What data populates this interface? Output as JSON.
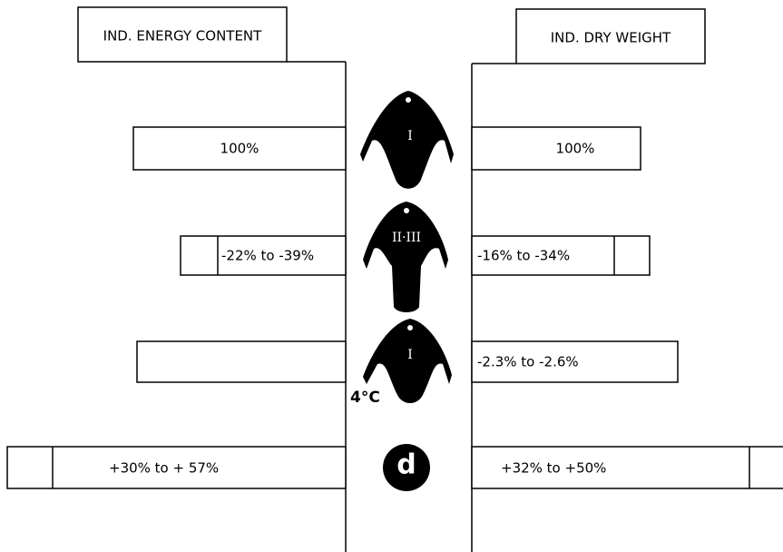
{
  "header": {
    "left": "IND. ENERGY CONTENT",
    "right": "IND. DRY WEIGHT"
  },
  "rows": [
    {
      "stage": "I",
      "left": "100%",
      "right": "100%"
    },
    {
      "stage": "II·III",
      "left": "-22% to -39%",
      "right": "-16% to -34%"
    },
    {
      "stage": "I",
      "temperature": "4°C",
      "right": "-2.3% to -2.6%"
    },
    {
      "symbol": "d",
      "left": "+30% to + 57%",
      "right": "+32% to +50%"
    }
  ]
}
